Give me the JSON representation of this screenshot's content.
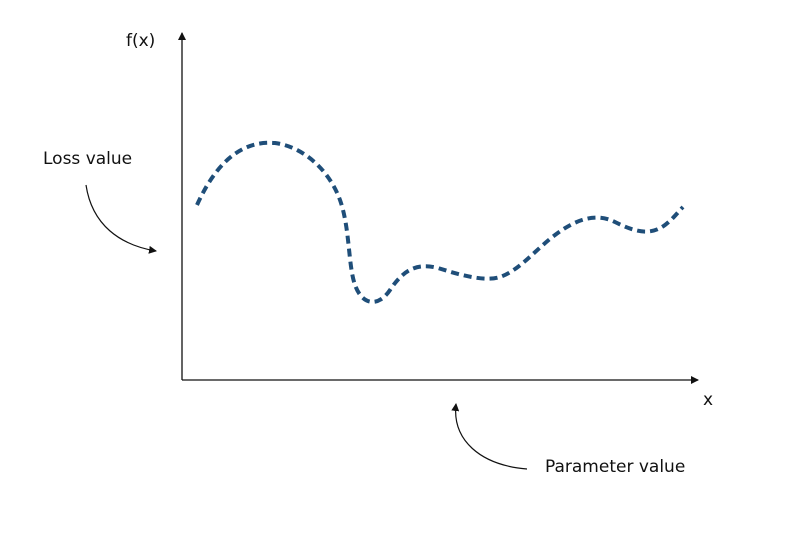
{
  "diagram": {
    "y_axis_label": "f(x)",
    "x_axis_label": "x",
    "loss_annotation": "Loss value",
    "parameter_annotation": "Parameter value"
  },
  "colors": {
    "axis": "#111111",
    "curve": "#1f4e79",
    "arrow": "#111111",
    "background": "#ffffff"
  },
  "curve_style": "dashed"
}
